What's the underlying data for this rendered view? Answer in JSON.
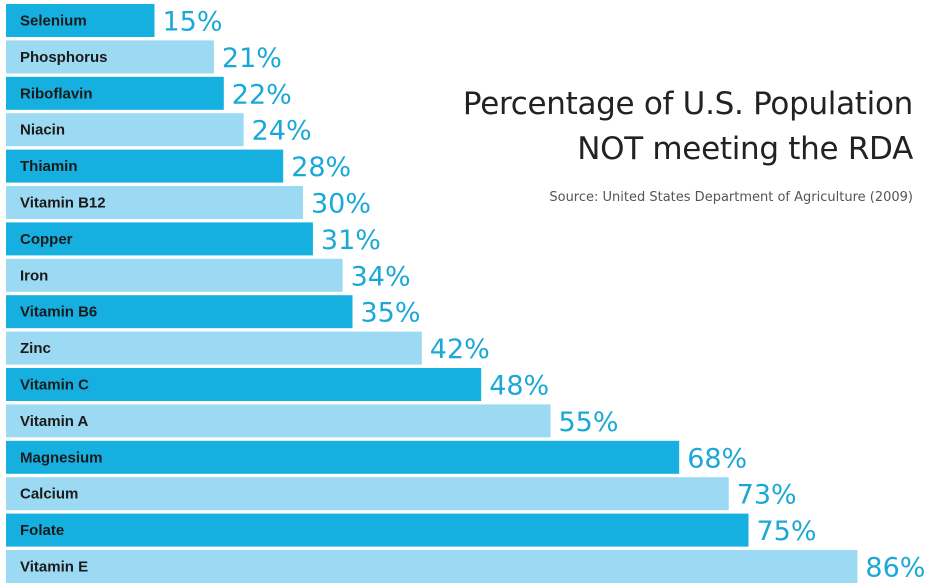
{
  "chart_data": {
    "type": "bar",
    "orientation": "horizontal",
    "title_lines": [
      "Percentage of U.S. Population",
      "NOT meeting the RDA"
    ],
    "subtitle": "Source: United States Department of Agriculture (2009)",
    "categories": [
      "Selenium",
      "Phosphorus",
      "Riboflavin",
      "Niacin",
      "Thiamin",
      "Vitamin B12",
      "Copper",
      "Iron",
      "Vitamin B6",
      "Zinc",
      "Vitamin C",
      "Vitamin A",
      "Magnesium",
      "Calcium",
      "Folate",
      "Vitamin E"
    ],
    "values": [
      15,
      21,
      22,
      24,
      28,
      30,
      31,
      34,
      35,
      42,
      48,
      55,
      68,
      73,
      75,
      86
    ],
    "value_labels": [
      "15%",
      "21%",
      "22%",
      "24%",
      "28%",
      "30%",
      "31%",
      "34%",
      "35%",
      "42%",
      "48%",
      "55%",
      "68%",
      "73%",
      "75%",
      "86%"
    ],
    "unit": "%",
    "colors": {
      "dark_bar": "#15b0e0",
      "light_bar": "#9cd9f2",
      "value_text": "#1aa9d6",
      "label_text": "#1a1a1a"
    }
  }
}
